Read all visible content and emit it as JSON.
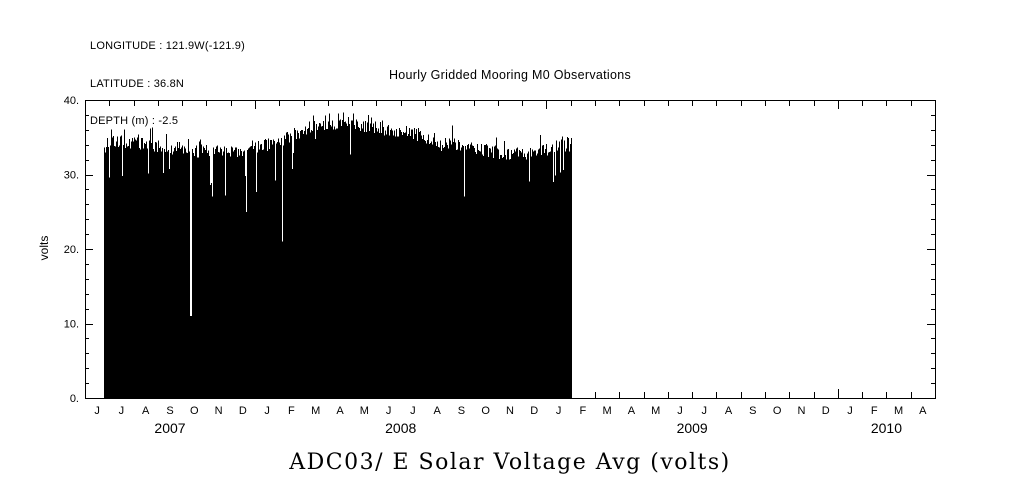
{
  "header": {
    "longitude": "LONGITUDE : 121.9W(-121.9)",
    "latitude": "LATITUDE : 36.8N",
    "depth": "DEPTH (m) : -2.5"
  },
  "chart_data": {
    "type": "area",
    "title": "Hourly Gridded Mooring M0 Observations",
    "caption": "ADC03/ E Solar Voltage Avg (volts)",
    "ylabel": "volts",
    "ylim": [
      0,
      40
    ],
    "yticks": [
      0,
      10,
      20,
      30,
      40
    ],
    "ytick_labels": [
      "0.",
      "10.",
      "20.",
      "30.",
      "40."
    ],
    "y_minor_step": 2,
    "grid": false,
    "frame": "box with inward ticks",
    "x_range": "Jun 2007 - Apr 2010",
    "x_months": [
      "J",
      "J",
      "A",
      "S",
      "O",
      "N",
      "D",
      "J",
      "F",
      "M",
      "A",
      "M",
      "J",
      "J",
      "A",
      "S",
      "O",
      "N",
      "D",
      "J",
      "F",
      "M",
      "A",
      "M",
      "J",
      "J",
      "A",
      "S",
      "O",
      "N",
      "D",
      "J",
      "F",
      "M",
      "A"
    ],
    "x_years": [
      {
        "label": "2007",
        "start_month": 0,
        "end_month": 7
      },
      {
        "label": "2008",
        "start_month": 7,
        "end_month": 19
      },
      {
        "label": "2009",
        "start_month": 19,
        "end_month": 31
      },
      {
        "label": "2010",
        "start_month": 31,
        "end_month": 35
      }
    ],
    "data_start_month_index": 0.8,
    "data_end_month_index": 20.0,
    "series": [
      {
        "name": "solar-voltage-daily-envelope",
        "description": "hourly solar voltage oscillates between 0 (night) and daily max, filling solid black from 0 to envelope",
        "fills_to_zero": true,
        "month_index": [
          0.8,
          1.5,
          2.5,
          3.5,
          4.5,
          5.5,
          6.5,
          7.5,
          8.5,
          9.5,
          10.5,
          11.5,
          12.5,
          13.5,
          14.5,
          15.5,
          16.5,
          17.5,
          18.5,
          19.5,
          20.0
        ],
        "volts": [
          34.4,
          34.2,
          34.0,
          33.6,
          33.2,
          33.0,
          33.3,
          34.0,
          35.2,
          36.6,
          37.0,
          36.6,
          36.0,
          35.5,
          34.6,
          34.0,
          33.3,
          32.7,
          33.0,
          33.8,
          34.0
        ]
      }
    ],
    "dropout_events": [
      {
        "month_index": 4.35,
        "volts": 11
      },
      {
        "month_index": 6.63,
        "volts": 25
      },
      {
        "month_index": 8.1,
        "volts": 21
      }
    ]
  }
}
